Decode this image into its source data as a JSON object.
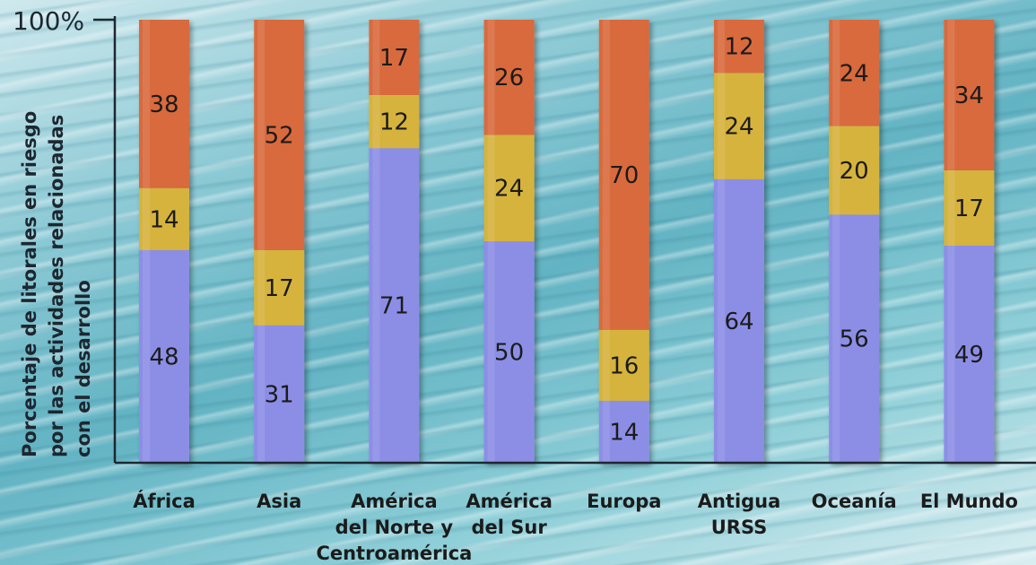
{
  "chart_data": {
    "type": "bar",
    "stacked": true,
    "ylabel": [
      "Porcentaje de litorales en riesgo",
      "por las actividades relacionadas",
      "con el desarrollo"
    ],
    "ytick_top": "100%",
    "ylim": [
      0,
      100
    ],
    "categories": [
      [
        "África"
      ],
      [
        "Asia"
      ],
      [
        "América",
        "del Norte y",
        "Centroamérica"
      ],
      [
        "América",
        "del Sur"
      ],
      [
        "Europa"
      ],
      [
        "Antigua",
        "URSS"
      ],
      [
        "Oceanía"
      ],
      [
        "El Mundo"
      ]
    ],
    "series": [
      {
        "color": "#8c8ee6",
        "values": [
          48,
          31,
          71,
          50,
          14,
          64,
          56,
          49
        ]
      },
      {
        "color": "#d6b33e",
        "values": [
          14,
          17,
          12,
          24,
          16,
          24,
          20,
          17
        ]
      },
      {
        "color": "#d86a3d",
        "values": [
          38,
          52,
          17,
          26,
          70,
          12,
          24,
          34
        ]
      }
    ]
  }
}
